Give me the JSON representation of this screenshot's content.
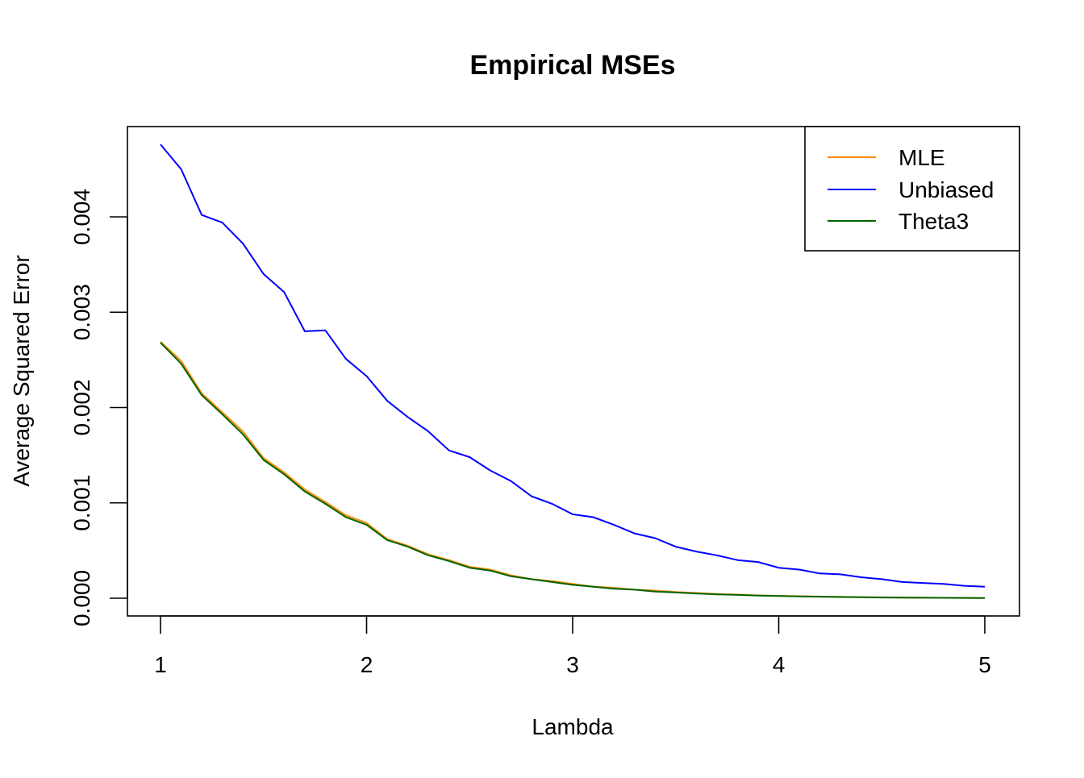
{
  "chart_data": {
    "type": "line",
    "title": "Empirical MSEs",
    "xlabel": "Lambda",
    "ylabel": "Average Squared Error",
    "xlim": [
      1,
      5
    ],
    "ylim": [
      0,
      0.0048
    ],
    "xticks": [
      1,
      2,
      3,
      4,
      5
    ],
    "xtick_labels": [
      "1",
      "2",
      "3",
      "4",
      "5"
    ],
    "yticks": [
      0,
      0.001,
      0.002,
      0.003,
      0.004
    ],
    "ytick_labels": [
      "0.000",
      "0.001",
      "0.002",
      "0.003",
      "0.004"
    ],
    "legend_position": "top-right",
    "grid": false,
    "x": [
      1.0,
      1.1,
      1.2,
      1.3,
      1.4,
      1.5,
      1.6,
      1.7,
      1.8,
      1.9,
      2.0,
      2.1,
      2.2,
      2.3,
      2.4,
      2.5,
      2.6,
      2.7,
      2.8,
      2.9,
      3.0,
      3.1,
      3.2,
      3.3,
      3.4,
      3.5,
      3.6,
      3.7,
      3.8,
      3.9,
      4.0,
      4.1,
      4.2,
      4.3,
      4.4,
      4.5,
      4.6,
      4.7,
      4.8,
      4.9,
      5.0
    ],
    "series": [
      {
        "name": "MLE",
        "color": "#ff8c00",
        "values": [
          0.00269,
          0.00249,
          0.00215,
          0.00195,
          0.00175,
          0.00147,
          0.00132,
          0.00114,
          0.00101,
          0.00087,
          0.00079,
          0.00062,
          0.00055,
          0.00046,
          0.0004,
          0.00033,
          0.0003,
          0.00024,
          0.0002,
          0.00018,
          0.00015,
          0.00012,
          0.00011,
          9e-05,
          8e-05,
          6.5e-05,
          5.5e-05,
          4.5e-05,
          3.8e-05,
          3e-05,
          2.5e-05,
          2.1e-05,
          1.7e-05,
          1.4e-05,
          1.1e-05,
          9e-06,
          7e-06,
          5e-06,
          4e-06,
          3e-06,
          2e-06
        ]
      },
      {
        "name": "Unbiased",
        "color": "#0000ff",
        "values": [
          0.00476,
          0.0045,
          0.00402,
          0.00394,
          0.00372,
          0.0034,
          0.00321,
          0.0028,
          0.00281,
          0.00251,
          0.00233,
          0.00207,
          0.0019,
          0.00175,
          0.00155,
          0.00148,
          0.00134,
          0.00123,
          0.00107,
          0.00099,
          0.00088,
          0.00085,
          0.00077,
          0.00068,
          0.00063,
          0.00054,
          0.00049,
          0.00045,
          0.0004,
          0.00038,
          0.00032,
          0.0003,
          0.00026,
          0.00025,
          0.00022,
          0.0002,
          0.00017,
          0.00016,
          0.00015,
          0.00013,
          0.00012
        ]
      },
      {
        "name": "Theta3",
        "color": "#006400",
        "values": [
          0.00268,
          0.00246,
          0.00213,
          0.00193,
          0.00172,
          0.00145,
          0.0013,
          0.00112,
          0.00099,
          0.00085,
          0.00077,
          0.00061,
          0.00054,
          0.00045,
          0.00039,
          0.00032,
          0.00029,
          0.00023,
          0.0002,
          0.00017,
          0.00014,
          0.00012,
          0.0001,
          9e-05,
          7e-05,
          6e-05,
          5e-05,
          4e-05,
          3.5e-05,
          2.8e-05,
          2.3e-05,
          1.9e-05,
          1.6e-05,
          1.3e-05,
          1e-05,
          8e-06,
          6e-06,
          5e-06,
          4e-06,
          3e-06,
          2e-06
        ]
      }
    ]
  }
}
